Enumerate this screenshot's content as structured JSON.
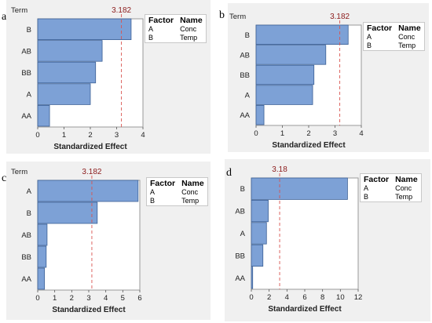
{
  "panels": [
    {
      "letter": "a",
      "chart_data": {
        "type": "bar",
        "orientation": "horizontal",
        "y_title": "Term",
        "xlabel": "Standardized Effect",
        "categories": [
          "B",
          "AB",
          "BB",
          "A",
          "AA"
        ],
        "values": [
          3.55,
          2.45,
          2.2,
          2.0,
          0.45
        ],
        "xlim": [
          0,
          4
        ],
        "xticks": [
          0,
          1,
          2,
          3,
          4
        ],
        "reference_line": {
          "value": 3.182,
          "label": "3.182"
        },
        "legend": {
          "headers": [
            "Factor",
            "Name"
          ],
          "rows": [
            [
              "A",
              "Conc"
            ],
            [
              "B",
              "Temp"
            ]
          ]
        }
      }
    },
    {
      "letter": "b",
      "chart_data": {
        "type": "bar",
        "orientation": "horizontal",
        "y_title": "Term",
        "xlabel": "Standardized Effect",
        "categories": [
          "B",
          "AB",
          "BB",
          "A",
          "AA"
        ],
        "values": [
          3.5,
          2.65,
          2.2,
          2.15,
          0.3
        ],
        "xlim": [
          0,
          4
        ],
        "xticks": [
          0,
          1,
          2,
          3,
          4
        ],
        "reference_line": {
          "value": 3.182,
          "label": "3.182"
        },
        "legend": {
          "headers": [
            "Factor",
            "Name"
          ],
          "rows": [
            [
              "A",
              "Conc"
            ],
            [
              "B",
              "Temp"
            ]
          ]
        }
      }
    },
    {
      "letter": "c",
      "chart_data": {
        "type": "bar",
        "orientation": "horizontal",
        "y_title": "Term",
        "xlabel": "Standardized Effect",
        "categories": [
          "A",
          "B",
          "AB",
          "BB",
          "AA"
        ],
        "values": [
          5.9,
          3.5,
          0.55,
          0.5,
          0.4
        ],
        "xlim": [
          0,
          6
        ],
        "xticks": [
          0,
          1,
          2,
          3,
          4,
          5,
          6
        ],
        "reference_line": {
          "value": 3.182,
          "label": "3.182"
        },
        "legend": {
          "headers": [
            "Factor",
            "Name"
          ],
          "rows": [
            [
              "A",
              "Conc"
            ],
            [
              "B",
              "Temp"
            ]
          ]
        }
      }
    },
    {
      "letter": "d",
      "chart_data": {
        "type": "bar",
        "orientation": "horizontal",
        "y_title": "",
        "xlabel": "Standardized Effect",
        "categories": [
          "B",
          "AB",
          "A",
          "BB",
          "AA"
        ],
        "values": [
          10.8,
          1.9,
          1.7,
          1.3,
          0.15
        ],
        "xlim": [
          0,
          12
        ],
        "xticks": [
          0,
          2,
          4,
          6,
          8,
          10,
          12
        ],
        "reference_line": {
          "value": 3.18,
          "label": "3.18"
        },
        "legend": {
          "headers": [
            "Factor",
            "Name"
          ],
          "rows": [
            [
              "A",
              "Conc"
            ],
            [
              "B",
              "Temp"
            ]
          ]
        }
      }
    }
  ],
  "colors": {
    "bar_fill": "#7da1d6",
    "bar_stroke": "#3a5f95",
    "ref_line": "#d9534f",
    "ref_label": "#8b1a1a",
    "panel_bg": "#f0f0f0"
  }
}
